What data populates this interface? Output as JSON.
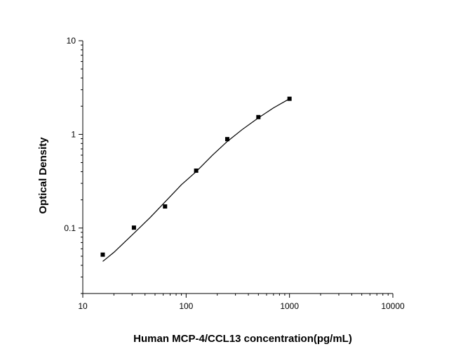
{
  "chart_data": {
    "type": "scatter",
    "title": "",
    "xlabel": "Human MCP-4/CCL13 concentration(pg/mL)",
    "ylabel": "Optical Density",
    "xscale": "log",
    "yscale": "log",
    "xlim": [
      10,
      10000
    ],
    "ylim": [
      0.02,
      10
    ],
    "xticks": [
      10,
      100,
      1000,
      10000
    ],
    "xtick_labels": [
      "10",
      "100",
      "1000",
      "10000"
    ],
    "yticks": [
      0.1,
      1,
      10
    ],
    "ytick_labels": [
      "0.1",
      "1",
      "10"
    ],
    "grid": false,
    "legend": "none",
    "colors": {
      "axis": "#000000",
      "marker": "#000000",
      "fit_line": "#000000"
    },
    "series": [
      {
        "kind": "points",
        "x": [
          15.6,
          31.25,
          62.5,
          125,
          250,
          500,
          1000
        ],
        "y": [
          0.052,
          0.101,
          0.17,
          0.41,
          0.89,
          1.53,
          2.4
        ]
      },
      {
        "kind": "fitted-curve",
        "x": [
          15.6,
          20,
          31.25,
          45,
          62.5,
          90,
          125,
          180,
          250,
          350,
          500,
          700,
          1000
        ],
        "y": [
          0.044,
          0.055,
          0.088,
          0.13,
          0.19,
          0.29,
          0.4,
          0.6,
          0.84,
          1.13,
          1.5,
          1.92,
          2.4
        ]
      }
    ]
  }
}
